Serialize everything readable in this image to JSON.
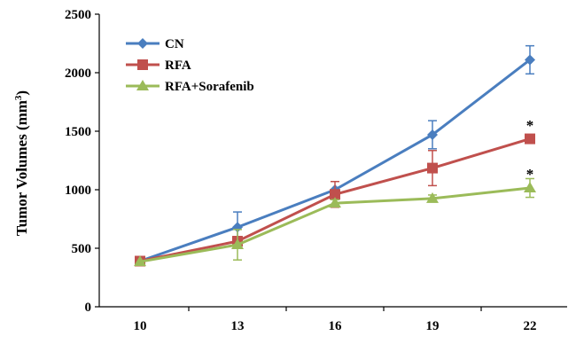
{
  "chart_data": {
    "type": "line",
    "title": "",
    "xlabel": "",
    "ylabel_main": "Tumor Volumes (mm",
    "ylabel_sup": "3",
    "ylabel_close": ")",
    "x": [
      10,
      13,
      16,
      19,
      22
    ],
    "x_tick_labels": [
      "10",
      "13",
      "16",
      "19",
      "22"
    ],
    "ylim": [
      0,
      2500
    ],
    "y_ticks": [
      0,
      500,
      1000,
      1500,
      2000,
      2500
    ],
    "y_tick_labels": [
      "0",
      "500",
      "1000",
      "1500",
      "2000",
      "2500"
    ],
    "grid": false,
    "legend_position": "top-left",
    "series": [
      {
        "name": "CN",
        "color": "#4a7ebf",
        "marker": "diamond",
        "values": [
          390,
          680,
          1000,
          1470,
          2110
        ],
        "errors": [
          0,
          130,
          0,
          120,
          120
        ]
      },
      {
        "name": "RFA",
        "color": "#c0504d",
        "marker": "square",
        "values": [
          390,
          560,
          960,
          1185,
          1435
        ],
        "errors": [
          0,
          40,
          110,
          150,
          0
        ]
      },
      {
        "name": "RFA+Sorafenib",
        "color": "#9bbb59",
        "marker": "triangle",
        "values": [
          385,
          530,
          885,
          925,
          1015
        ],
        "errors": [
          0,
          130,
          30,
          30,
          80
        ]
      }
    ],
    "annotations": [
      {
        "text": "*",
        "x": 22,
        "y": 1585
      },
      {
        "text": "*",
        "x": 22,
        "y": 1165
      }
    ]
  }
}
